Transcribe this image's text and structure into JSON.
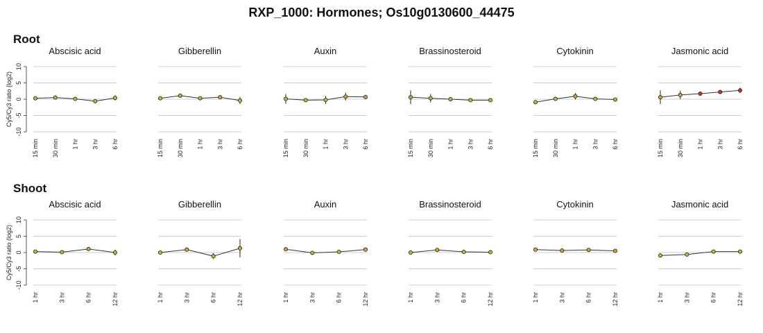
{
  "title": "RXP_1000: Hormones; Os10g0130600_44475",
  "chart_data": [
    {
      "section": "Root",
      "ylabel": "Cy5/Cy3 ratio (log2)",
      "yticks": [
        10,
        5,
        0,
        -5,
        -10
      ],
      "ylim": [
        -10,
        10
      ],
      "x": [
        "15 min",
        "30 min",
        "1 hr",
        "3 hr",
        "6 hr"
      ],
      "type": "line",
      "panels": [
        {
          "name": "Abscisic acid",
          "values": [
            0.3,
            0.5,
            0.1,
            -0.6,
            0.4
          ],
          "errors": [
            0.2,
            0.3,
            0.6,
            0.4,
            0.8
          ]
        },
        {
          "name": "Gibberellin",
          "values": [
            0.3,
            1.1,
            0.3,
            0.6,
            -0.4
          ],
          "errors": [
            0.6,
            0.3,
            0.3,
            0.3,
            1.1
          ]
        },
        {
          "name": "Auxin",
          "values": [
            0.1,
            -0.3,
            -0.2,
            0.8,
            0.7
          ],
          "errors": [
            1.5,
            0.3,
            1.2,
            1.2,
            0.6
          ]
        },
        {
          "name": "Brassinosteroid",
          "values": [
            0.6,
            0.3,
            0.0,
            -0.3,
            -0.3
          ],
          "errors": [
            2.1,
            1.3,
            0.6,
            0.3,
            0.3
          ]
        },
        {
          "name": "Cytokinin",
          "values": [
            -0.9,
            0.1,
            0.9,
            0.1,
            -0.1
          ],
          "errors": [
            0.3,
            0.3,
            1.0,
            0.3,
            0.3
          ]
        },
        {
          "name": "Jasmonic acid",
          "values": [
            0.6,
            1.3,
            1.7,
            2.2,
            2.7
          ],
          "errors": [
            2.1,
            1.3,
            0.3,
            0.3,
            0.8
          ]
        }
      ]
    },
    {
      "section": "Shoot",
      "ylabel": "Cy5/Cy3 ratio (log2)",
      "yticks": [
        10,
        5,
        0,
        -5,
        -10
      ],
      "ylim": [
        -10,
        10
      ],
      "x": [
        "1 hr",
        "3 hr",
        "6 hr",
        "12 hr"
      ],
      "type": "line",
      "panels": [
        {
          "name": "Abscisic acid",
          "values": [
            0.3,
            0.1,
            1.1,
            0.0
          ],
          "errors": [
            0.3,
            0.3,
            0.3,
            0.9
          ]
        },
        {
          "name": "Gibberellin",
          "values": [
            0.0,
            0.9,
            -1.1,
            1.3
          ],
          "errors": [
            0.3,
            0.6,
            0.9,
            2.8
          ]
        },
        {
          "name": "Auxin",
          "values": [
            1.0,
            -0.1,
            0.2,
            0.9
          ],
          "errors": [
            0.4,
            0.3,
            0.3,
            0.5
          ]
        },
        {
          "name": "Brassinosteroid",
          "values": [
            0.0,
            0.8,
            0.2,
            0.1
          ],
          "errors": [
            0.3,
            0.3,
            0.3,
            0.3
          ]
        },
        {
          "name": "Cytokinin",
          "values": [
            0.9,
            0.6,
            0.8,
            0.5
          ],
          "errors": [
            0.3,
            0.3,
            0.3,
            0.3
          ]
        },
        {
          "name": "Jasmonic acid",
          "values": [
            -0.9,
            -0.6,
            0.3,
            0.3
          ],
          "errors": [
            0.6,
            0.5,
            0.3,
            0.3
          ]
        }
      ]
    }
  ],
  "colors": {
    "grid": "#cccccc",
    "axis": "#555555",
    "line": "#333333",
    "point_low": "#9acd32",
    "point_mid": "#c8a63a",
    "point_high": "#cc3322"
  }
}
